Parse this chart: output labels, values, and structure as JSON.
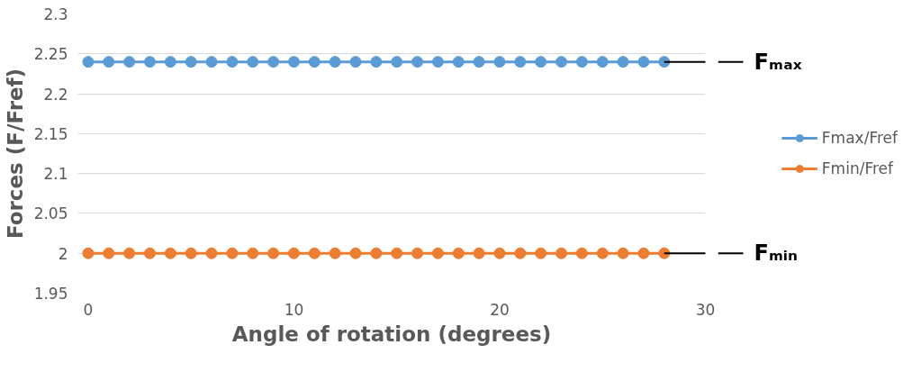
{
  "chart_data": {
    "type": "line",
    "xlabel": "Angle of rotation (degrees)",
    "ylabel": "Forces (F/Fref)",
    "x": [
      0,
      1,
      2,
      3,
      4,
      5,
      6,
      7,
      8,
      9,
      10,
      11,
      12,
      13,
      14,
      15,
      16,
      17,
      18,
      19,
      20,
      21,
      22,
      23,
      24,
      25,
      26,
      27,
      28
    ],
    "series": [
      {
        "name": "Fmax/Fref",
        "color": "#5b9bd5",
        "values": [
          2.24,
          2.24,
          2.24,
          2.24,
          2.24,
          2.24,
          2.24,
          2.24,
          2.24,
          2.24,
          2.24,
          2.24,
          2.24,
          2.24,
          2.24,
          2.24,
          2.24,
          2.24,
          2.24,
          2.24,
          2.24,
          2.24,
          2.24,
          2.24,
          2.24,
          2.24,
          2.24,
          2.24,
          2.24
        ]
      },
      {
        "name": "Fmin/Fref",
        "color": "#ed7d31",
        "values": [
          2,
          2,
          2,
          2,
          2,
          2,
          2,
          2,
          2,
          2,
          2,
          2,
          2,
          2,
          2,
          2,
          2,
          2,
          2,
          2,
          2,
          2,
          2,
          2,
          2,
          2,
          2,
          2,
          2
        ]
      }
    ],
    "annotations": [
      {
        "text": "Fₘₐₓ",
        "x": 28,
        "y": 2.24
      },
      {
        "text": "Fₘᵢₙ",
        "x": 28,
        "y": 2
      }
    ],
    "xlim": [
      -0.5,
      30
    ],
    "xticks": [
      0,
      10,
      20,
      30
    ],
    "ylim": [
      1.95,
      2.3
    ],
    "yticks": [
      1.95,
      2,
      2.05,
      2.1,
      2.15,
      2.2,
      2.25,
      2.3
    ],
    "grid": "y",
    "legend": "right",
    "marker": "circle",
    "line_style": "solid"
  }
}
